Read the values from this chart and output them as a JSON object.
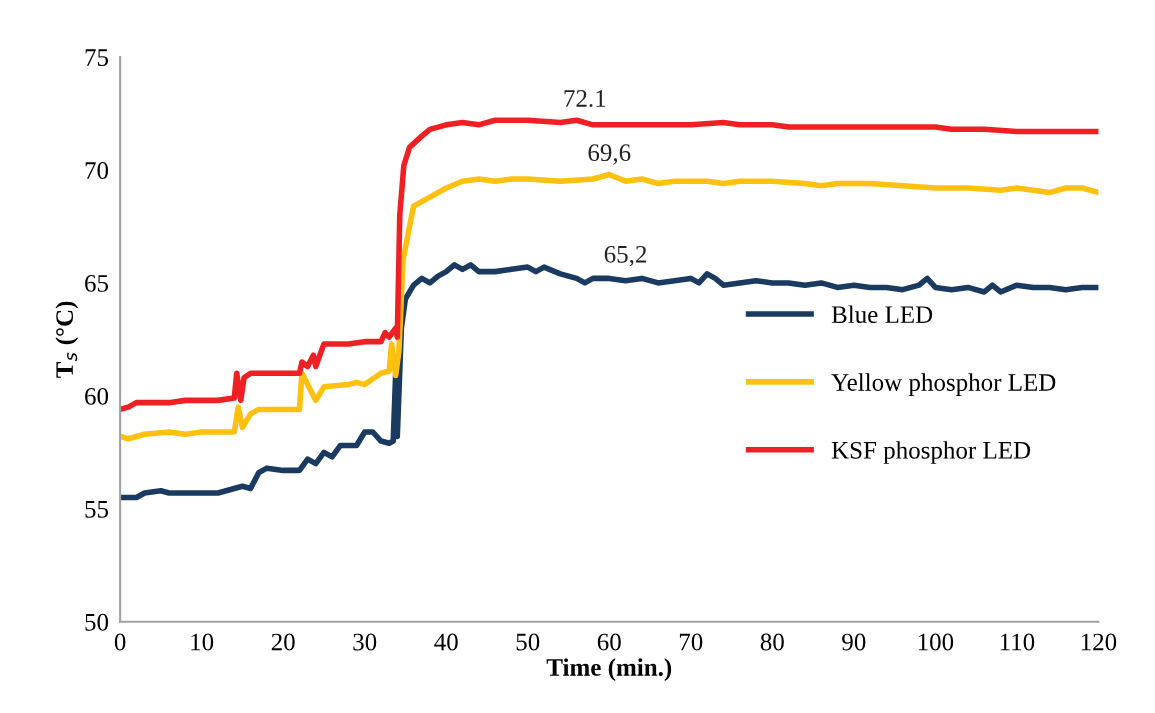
{
  "chart_data": {
    "type": "line",
    "xlabel": "Time (min.)",
    "ylabel": "T$_{s}$ (°C)",
    "xlim": [
      0,
      120
    ],
    "ylim": [
      50,
      75
    ],
    "xticks": [
      0,
      10,
      20,
      30,
      40,
      50,
      60,
      70,
      80,
      90,
      100,
      110,
      120
    ],
    "yticks": [
      50,
      55,
      60,
      65,
      70,
      75
    ],
    "grid": false,
    "legend": "right",
    "marker": "none",
    "line_style": "solid",
    "series": [
      {
        "name": "Blue LED",
        "color": "#1a3a5f",
        "x": [
          0,
          2,
          3,
          5,
          6,
          12,
          13,
          15,
          16,
          17,
          18,
          20,
          22,
          23,
          24,
          25,
          26,
          27,
          29,
          30,
          31,
          32,
          33,
          33.5,
          33.8,
          34,
          34.5,
          35,
          36,
          37,
          38,
          39,
          40,
          41,
          42,
          43,
          44,
          46,
          48,
          50,
          51,
          52,
          54,
          56,
          57,
          58,
          60,
          62,
          64,
          66,
          68,
          70,
          71,
          72,
          73,
          74,
          76,
          78,
          80,
          82,
          84,
          86,
          88,
          90,
          92,
          94,
          96,
          98,
          99,
          100,
          102,
          104,
          106,
          107,
          108,
          110,
          112,
          114,
          116,
          118,
          120
        ],
        "values": [
          55.5,
          55.5,
          55.7,
          55.8,
          55.7,
          55.7,
          55.8,
          56.0,
          55.9,
          56.6,
          56.8,
          56.7,
          56.7,
          57.2,
          57.0,
          57.5,
          57.3,
          57.8,
          57.8,
          58.4,
          58.4,
          58.0,
          57.9,
          58.0,
          61.0,
          58.2,
          63.0,
          64.3,
          64.9,
          65.2,
          65.0,
          65.3,
          65.5,
          65.8,
          65.6,
          65.8,
          65.5,
          65.5,
          65.6,
          65.7,
          65.5,
          65.7,
          65.4,
          65.2,
          65.0,
          65.2,
          65.2,
          65.1,
          65.2,
          65.0,
          65.1,
          65.2,
          65.0,
          65.4,
          65.2,
          64.9,
          65.0,
          65.1,
          65.0,
          65.0,
          64.9,
          65.0,
          64.8,
          64.9,
          64.8,
          64.8,
          64.7,
          64.9,
          65.2,
          64.8,
          64.7,
          64.8,
          64.6,
          64.9,
          64.6,
          64.9,
          64.8,
          64.8,
          64.7,
          64.8,
          64.8
        ]
      },
      {
        "name": "Yellow phosphor LED",
        "color": "#ffc010",
        "x": [
          0,
          1,
          3,
          6,
          8,
          10,
          14,
          14.5,
          15,
          16,
          17,
          22,
          22.3,
          23,
          24,
          25,
          28,
          29,
          30,
          32,
          33,
          33.3,
          33.8,
          34.2,
          34.7,
          35.5,
          36,
          38,
          40,
          42,
          44,
          46,
          48,
          50,
          54,
          58,
          60,
          62,
          64,
          66,
          68,
          72,
          74,
          76,
          80,
          84,
          86,
          88,
          92,
          96,
          100,
          104,
          108,
          110,
          112,
          114,
          116,
          118,
          120
        ],
        "values": [
          58.2,
          58.1,
          58.3,
          58.4,
          58.3,
          58.4,
          58.4,
          59.5,
          58.6,
          59.2,
          59.4,
          59.4,
          61.0,
          60.5,
          59.8,
          60.4,
          60.5,
          60.6,
          60.5,
          61.0,
          61.1,
          62.3,
          60.9,
          62.0,
          66.0,
          67.5,
          68.4,
          68.8,
          69.2,
          69.5,
          69.6,
          69.5,
          69.6,
          69.6,
          69.5,
          69.6,
          69.8,
          69.5,
          69.6,
          69.4,
          69.5,
          69.5,
          69.4,
          69.5,
          69.5,
          69.4,
          69.3,
          69.4,
          69.4,
          69.3,
          69.2,
          69.2,
          69.1,
          69.2,
          69.1,
          69.0,
          69.2,
          69.2,
          69.0
        ]
      },
      {
        "name": "KSF phosphor LED",
        "color": "#ee2024",
        "x": [
          0,
          1,
          2,
          6,
          8,
          12,
          14,
          14.3,
          14.8,
          15.2,
          16,
          22,
          22.3,
          23,
          23.7,
          24,
          25,
          28,
          30,
          32,
          32.5,
          33,
          33.8,
          34,
          34.3,
          34.8,
          35.5,
          37,
          38,
          40,
          42,
          44,
          46,
          50,
          54,
          56,
          58,
          62,
          66,
          70,
          74,
          76,
          80,
          82,
          84,
          90,
          96,
          100,
          102,
          106,
          110,
          114,
          118,
          120
        ],
        "values": [
          59.4,
          59.5,
          59.7,
          59.7,
          59.8,
          59.8,
          59.9,
          61.0,
          59.8,
          60.8,
          61.0,
          61.0,
          61.5,
          61.3,
          61.8,
          61.3,
          62.3,
          62.3,
          62.4,
          62.4,
          62.8,
          62.6,
          63.0,
          62.6,
          68.0,
          70.2,
          71.0,
          71.5,
          71.8,
          72.0,
          72.1,
          72.0,
          72.2,
          72.2,
          72.1,
          72.2,
          72.0,
          72.0,
          72.0,
          72.0,
          72.1,
          72.0,
          72.0,
          71.9,
          71.9,
          71.9,
          71.9,
          71.9,
          71.8,
          71.8,
          71.7,
          71.7,
          71.7,
          71.7
        ]
      }
    ],
    "annotations": [
      {
        "text": "72.1",
        "x": 57,
        "y": 72.2
      },
      {
        "text": "69,6",
        "x": 60,
        "y": 69.8
      },
      {
        "text": "65,2",
        "x": 62,
        "y": 65.3
      }
    ]
  }
}
